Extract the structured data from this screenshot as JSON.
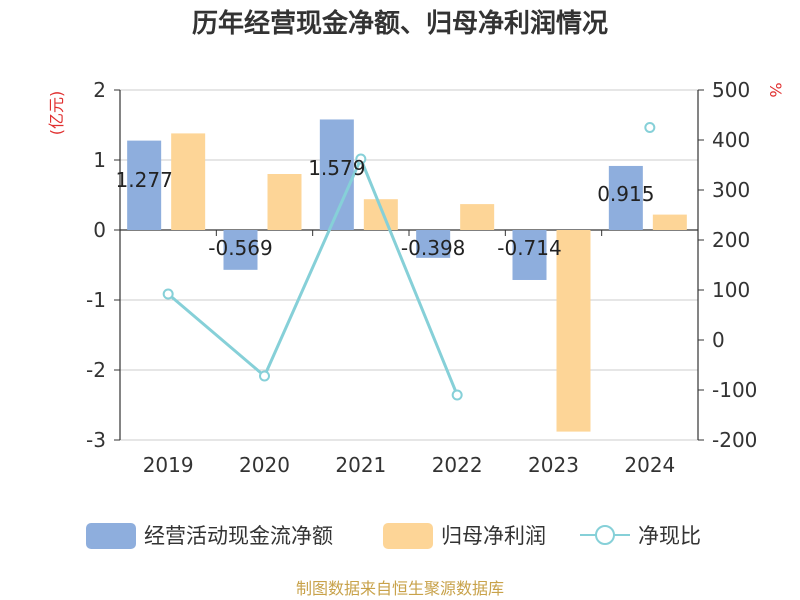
{
  "chart_data": {
    "type": "bar+line",
    "title": "历年经营现金净额、归母净利润情况",
    "source": "制图数据来自恒生聚源数据库",
    "y_left_unit": "(亿元)",
    "y_right_unit": "%",
    "y_left_range": [
      -3,
      2
    ],
    "y_right_range": [
      -200,
      500
    ],
    "y_left_ticks": [
      "2",
      "1",
      "0",
      "-1",
      "-2",
      "-3"
    ],
    "y_right_ticks": [
      "500",
      "400",
      "300",
      "200",
      "100",
      "0",
      "-100",
      "-200"
    ],
    "categories": [
      "2019",
      "2020",
      "2021",
      "2022",
      "2023",
      "2024"
    ],
    "series": [
      {
        "name": "经营活动现金流净额",
        "type": "bar",
        "axis": "left",
        "color": "#8eaedd",
        "values": [
          1.277,
          -0.569,
          1.579,
          -0.398,
          -0.714,
          0.915
        ],
        "labels": [
          "1.277",
          "-0.569",
          "1.579",
          "-0.398",
          "-0.714",
          "0.915"
        ]
      },
      {
        "name": "归母净利润",
        "type": "bar",
        "axis": "left",
        "color": "#fdd597",
        "values": [
          1.38,
          0.8,
          0.44,
          0.37,
          -2.88,
          0.22
        ]
      },
      {
        "name": "净现比",
        "type": "line",
        "axis": "right",
        "color": "#86d0d8",
        "values": [
          92,
          -72,
          362,
          -110,
          null,
          425
        ]
      }
    ],
    "legend_position": "bottom"
  }
}
